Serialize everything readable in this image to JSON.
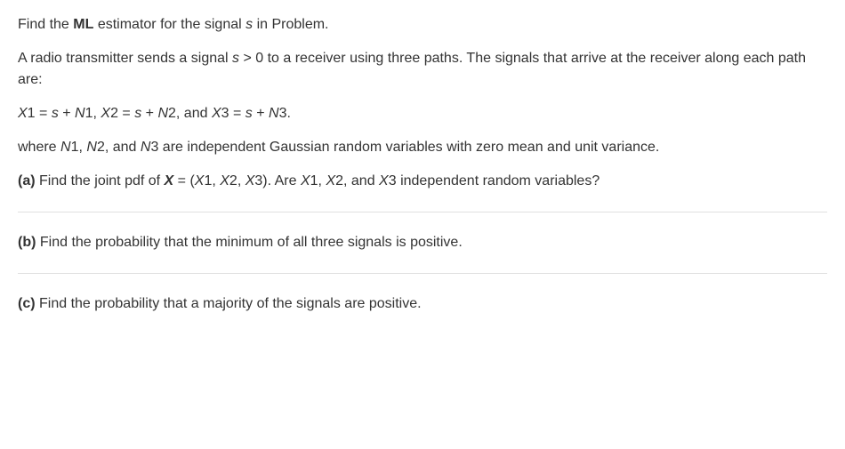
{
  "text_color": "#333333",
  "background_color": "#ffffff",
  "font_size": 16,
  "separator_color": "#e0e0e0",
  "intro": {
    "line1_pre": "Find the ",
    "line1_bold": "ML",
    "line1_mid": " estimator for the signal ",
    "line1_s": "s",
    "line1_post": " in Problem."
  },
  "desc": {
    "line1_pre": "A radio transmitter sends a signal ",
    "line1_s": "s",
    "line1_post": " > 0 to a receiver using three paths. The signals that arrive at the receiver along each path are:"
  },
  "equations": {
    "x1_lhs": "X",
    "x1_num": "1 = ",
    "s1": "s",
    "plus1": " + ",
    "n1": "N",
    "n1_num": "1, ",
    "x2_lhs": "X",
    "x2_num": "2 = ",
    "s2": "s",
    "plus2": " + ",
    "n2": "N",
    "n2_num": "2, and ",
    "x3_lhs": "X",
    "x3_num": "3 = ",
    "s3": "s",
    "plus3": " + ",
    "n3": "N",
    "n3_num": "3."
  },
  "where": {
    "pre": "where ",
    "n1": "N",
    "n1_num": "1, ",
    "n2": "N",
    "n2_num": "2, and ",
    "n3": "N",
    "n3_num": "3 are independent Gaussian random variables with zero mean and unit variance."
  },
  "part_a": {
    "label": "(a)",
    "pre": " Find the joint pdf of ",
    "bold_x": "X",
    "eq": " = (",
    "x1": "X",
    "x1_num": "1, ",
    "x2": "X",
    "x2_num": "2, ",
    "x3": "X",
    "x3_num": "3). Are ",
    "ax1": "X",
    "ax1_num": "1, ",
    "ax2": "X",
    "ax2_num": "2, and ",
    "ax3": "X",
    "ax3_num": "3 independent random variables?"
  },
  "part_b": {
    "label": "(b)",
    "text": " Find the probability that the minimum of all three signals is positive."
  },
  "part_c": {
    "label": "(c)",
    "text": " Find the probability that a majority of the signals are positive."
  }
}
